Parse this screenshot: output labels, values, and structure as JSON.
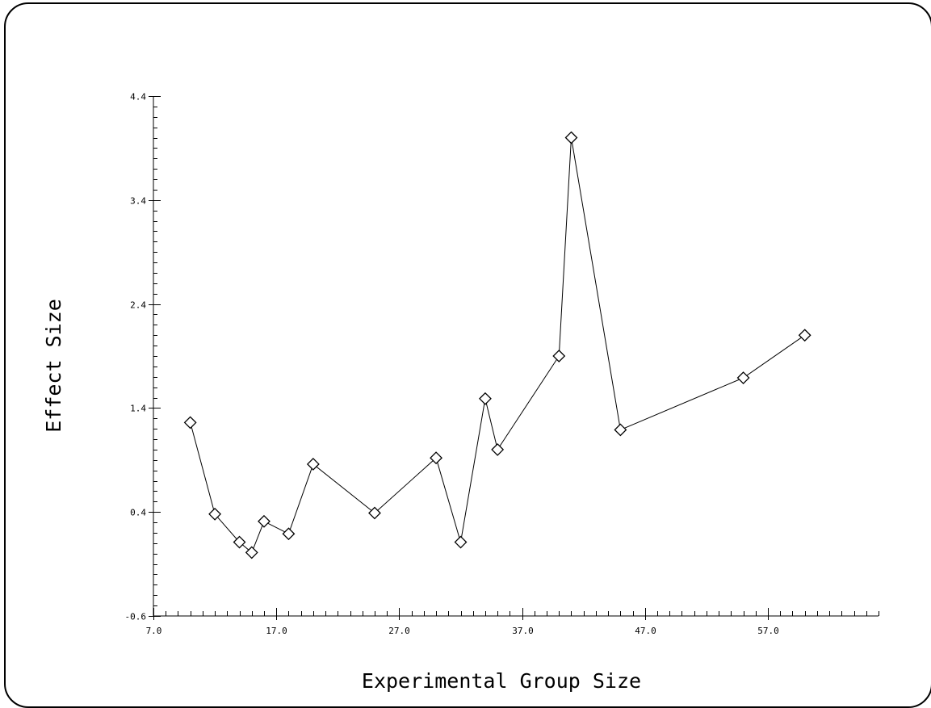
{
  "chart_data": {
    "type": "line",
    "title": "",
    "xlabel": "Experimental Group Size",
    "ylabel": "Effect Size",
    "xlim": [
      7.0,
      66.0
    ],
    "ylim": [
      -0.6,
      4.4
    ],
    "x_ticks": [
      "7.0",
      "17.0",
      "27.0",
      "37.0",
      "47.0",
      "57.0"
    ],
    "x_tick_values": [
      7,
      17,
      27,
      37,
      47,
      57
    ],
    "y_ticks": [
      "-0.6",
      "0.4",
      "1.4",
      "2.4",
      "3.4",
      "4.4"
    ],
    "y_tick_values": [
      -0.6,
      0.4,
      1.4,
      2.4,
      3.4,
      4.4
    ],
    "minor_x_step": 1,
    "minor_y_step": 0.1,
    "marker": "diamond",
    "series": [
      {
        "x": [
          10,
          12,
          14,
          15,
          16,
          18,
          20,
          25,
          30,
          32,
          34,
          35,
          40,
          41,
          45,
          55,
          60
        ],
        "y": [
          1.26,
          0.38,
          0.11,
          0.01,
          0.31,
          0.19,
          0.86,
          0.39,
          0.92,
          0.11,
          1.49,
          1.0,
          1.9,
          4.0,
          1.19,
          1.69,
          2.1
        ]
      }
    ],
    "grid": false,
    "legend": "none"
  }
}
